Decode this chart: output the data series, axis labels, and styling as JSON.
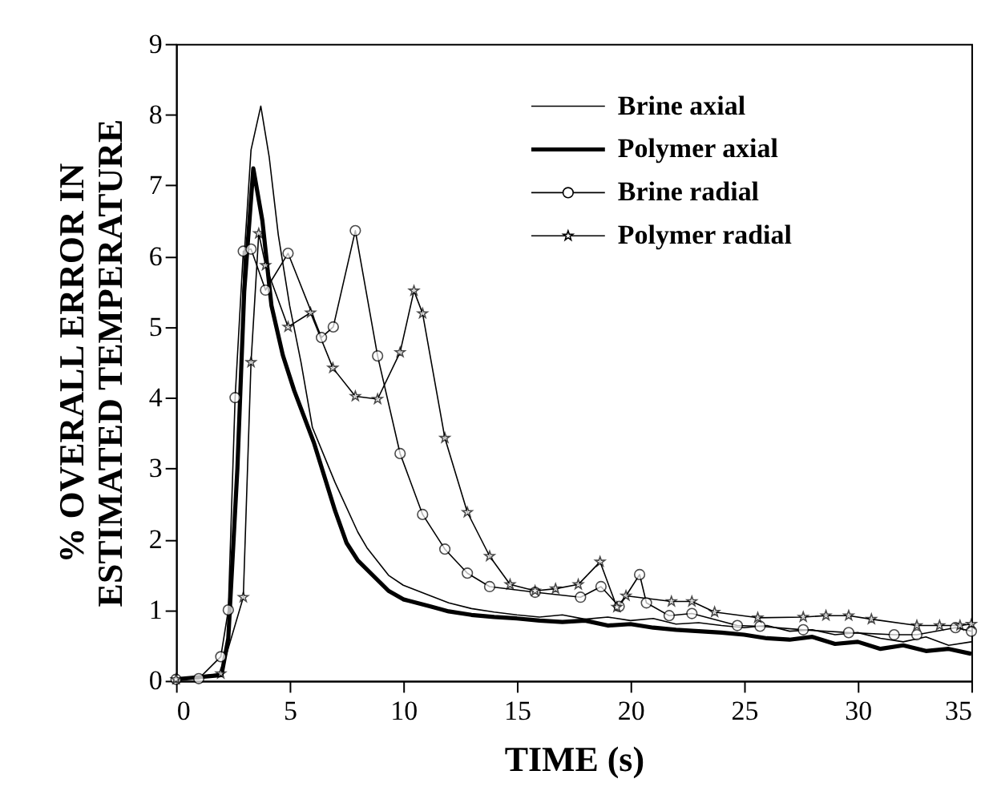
{
  "chart_data": {
    "type": "line",
    "xlabel": "TIME (s)",
    "ylabel": "% OVERALL ERROR IN\nESTIMATED TEMPERATURE",
    "xlim": [
      0,
      35
    ],
    "xticks": [
      0,
      5,
      10,
      15,
      20,
      25,
      30,
      35
    ],
    "ylim": [
      0,
      9
    ],
    "yticks": [
      0,
      1,
      2,
      3,
      4,
      5,
      6,
      7,
      8,
      9
    ],
    "grid": false,
    "legend": "top right",
    "line_style": "solid",
    "series": [
      {
        "name": "Brine axial",
        "color": "#000000",
        "marker": "none",
        "x": [
          0,
          1,
          2,
          2.3,
          2.7,
          3.0,
          3.3,
          3.73,
          4.1,
          4.5,
          5,
          5.5,
          6,
          7,
          8,
          8.4,
          9.35,
          10,
          11.2,
          12,
          13,
          14,
          15,
          16,
          17,
          18,
          19,
          20,
          21,
          22,
          23,
          24,
          25,
          26,
          27,
          28,
          29,
          30,
          31,
          32,
          33,
          34,
          35
        ],
        "values": [
          0.02,
          0.03,
          0.1,
          0.5,
          3,
          6,
          7.5,
          8.12,
          7.4,
          6.3,
          5.3,
          4.5,
          3.58,
          2.8,
          2.1,
          1.88,
          1.49,
          1.35,
          1.2,
          1.1,
          1.02,
          0.97,
          0.93,
          0.9,
          0.93,
          0.87,
          0.9,
          0.85,
          0.88,
          0.8,
          0.82,
          0.78,
          0.75,
          0.78,
          0.7,
          0.72,
          0.65,
          0.68,
          0.6,
          0.55,
          0.62,
          0.5,
          0.55
        ]
      },
      {
        "name": "Polymer axial",
        "color": "#000000",
        "marker": "none",
        "x": [
          0,
          2,
          2.3,
          2.7,
          3.0,
          3.4,
          3.8,
          4.2,
          4.7,
          5.2,
          6.06,
          7,
          7.5,
          8,
          9.35,
          10,
          11.2,
          12,
          13,
          14,
          15,
          16,
          17,
          18,
          19,
          20,
          21,
          22,
          23,
          24,
          25,
          26,
          27,
          28,
          29,
          30,
          31,
          32,
          33,
          34,
          35
        ],
        "values": [
          0.02,
          0.08,
          0.6,
          3.0,
          5.5,
          7.24,
          6.5,
          5.3,
          4.6,
          4.1,
          3.37,
          2.4,
          1.95,
          1.7,
          1.27,
          1.15,
          1.05,
          0.98,
          0.93,
          0.9,
          0.88,
          0.85,
          0.83,
          0.85,
          0.78,
          0.8,
          0.75,
          0.72,
          0.7,
          0.68,
          0.65,
          0.6,
          0.58,
          0.62,
          0.52,
          0.55,
          0.45,
          0.5,
          0.42,
          0.45,
          0.38
        ]
      },
      {
        "name": "Brine radial",
        "color": "#000000",
        "marker": "circle",
        "x": [
          0,
          1.0,
          1.97,
          2.3,
          2.6,
          2.96,
          3.3,
          3.94,
          4.93,
          6.4,
          6.92,
          7.89,
          8.87,
          9.86,
          10.85,
          11.83,
          12.82,
          13.8,
          15.8,
          17.8,
          18.7,
          19.5,
          20.4,
          20.7,
          21.7,
          22.7,
          24.7,
          25.7,
          27.6,
          29.6,
          31.6,
          32.6,
          34.3,
          35
        ],
        "values": [
          0.02,
          0.03,
          0.34,
          1.0,
          4.0,
          6.07,
          6.1,
          5.52,
          6.04,
          4.85,
          5.0,
          6.36,
          4.59,
          3.21,
          2.35,
          1.86,
          1.52,
          1.33,
          1.25,
          1.18,
          1.33,
          1.05,
          1.5,
          1.1,
          0.92,
          0.95,
          0.78,
          0.77,
          0.72,
          0.68,
          0.65,
          0.65,
          0.75,
          0.7
        ]
      },
      {
        "name": "Polymer radial",
        "color": "#000000",
        "marker": "star",
        "x": [
          0,
          1.97,
          2.96,
          3.3,
          3.64,
          3.94,
          4.93,
          5.92,
          6.9,
          7.89,
          8.87,
          9.86,
          10.47,
          10.85,
          11.83,
          12.82,
          13.8,
          14.7,
          15.8,
          16.7,
          17.7,
          18.66,
          19.4,
          19.8,
          21.8,
          22.7,
          23.7,
          25.6,
          27.6,
          28.6,
          29.6,
          30.6,
          32.6,
          33.6,
          34.5,
          35
        ],
        "values": [
          0.02,
          0.1,
          1.18,
          4.5,
          6.32,
          5.87,
          5.0,
          5.2,
          4.42,
          4.02,
          3.98,
          4.64,
          5.51,
          5.19,
          3.43,
          2.38,
          1.76,
          1.36,
          1.27,
          1.3,
          1.36,
          1.68,
          1.04,
          1.2,
          1.12,
          1.12,
          0.97,
          0.89,
          0.9,
          0.92,
          0.92,
          0.87,
          0.78,
          0.78,
          0.78,
          0.8
        ]
      }
    ]
  }
}
